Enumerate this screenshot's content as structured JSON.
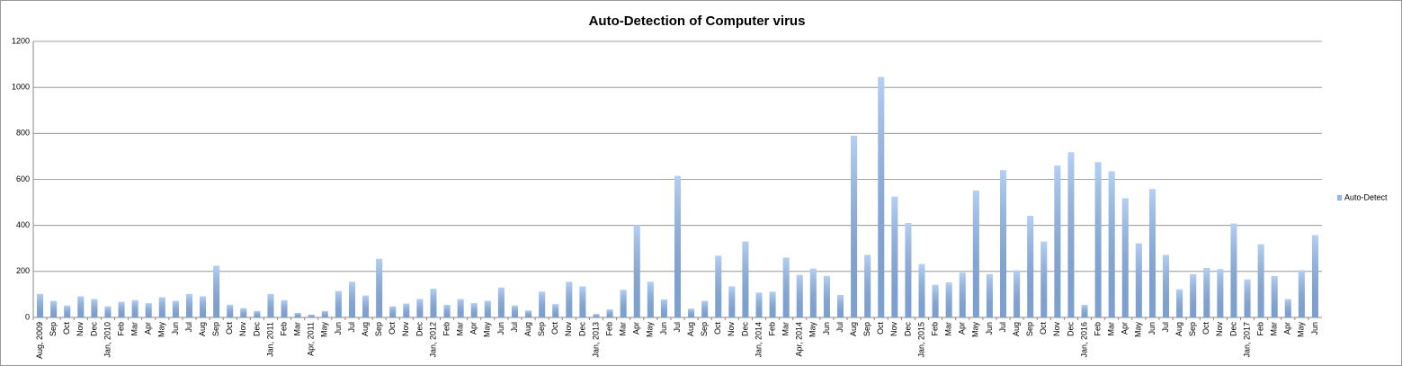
{
  "chart_data": {
    "type": "bar",
    "title": "Auto-Detection of Computer virus",
    "categories": [
      "Aug, 2009",
      "Sep",
      "Oct",
      "Nov",
      "Dec",
      "Jan, 2010",
      "Feb",
      "Mar",
      "Apr",
      "May",
      "Jun",
      "Jul",
      "Aug",
      "Sep",
      "Oct",
      "Nov",
      "Dec",
      "Jan, 2011",
      "Feb",
      "Mar",
      "Apr, 2011",
      "May",
      "Jun",
      "Jul",
      "Aug",
      "Sep",
      "Oct",
      "Nov",
      "Dec",
      "Jan, 2012",
      "Feb",
      "Mar",
      "Apr",
      "May",
      "Jun",
      "Jul",
      "Aug",
      "Sep",
      "Oct",
      "Nov",
      "Dec",
      "Jan, 2013",
      "Feb",
      "Mar",
      "Apr",
      "May",
      "Jun",
      "Jul",
      "Aug",
      "Sep",
      "Oct",
      "Nov",
      "Dec",
      "Jan, 2014",
      "Feb",
      "Mar",
      "Apr, 2014",
      "May",
      "Jun",
      "Jul",
      "Aug",
      "Sep",
      "Oct",
      "Nov",
      "Dec",
      "Jan, 2015",
      "Feb",
      "Mar",
      "Apr",
      "May",
      "Jun",
      "Jul",
      "Aug",
      "Sep",
      "Oct",
      "Nov",
      "Dec",
      "Jan, 2016",
      "Feb",
      "Mar",
      "Apr",
      "May",
      "Jun",
      "Jul",
      "Aug",
      "Sep",
      "Oct",
      "Nov",
      "Dec",
      "Jan, 2017",
      "Feb",
      "Mar",
      "Apr",
      "May",
      "Jun"
    ],
    "series": [
      {
        "name": "Auto-Detect",
        "color": "#8db6ee",
        "values": [
          102,
          72,
          52,
          92,
          80,
          48,
          68,
          75,
          62,
          88,
          72,
          102,
          92,
          225,
          55,
          40,
          28,
          102,
          75,
          20,
          12,
          28,
          115,
          155,
          95,
          255,
          48,
          60,
          80,
          125,
          55,
          80,
          62,
          72,
          130,
          52,
          30,
          112,
          58,
          155,
          135,
          15,
          35,
          120,
          400,
          155,
          78,
          615,
          38,
          72,
          268,
          135,
          330,
          108,
          112,
          260,
          185,
          212,
          180,
          98,
          790,
          272,
          1045,
          525,
          410,
          232,
          142,
          152,
          195,
          552,
          188,
          640,
          205,
          442,
          330,
          660,
          718,
          55,
          675,
          635,
          518,
          322,
          558,
          272,
          122,
          188,
          215,
          210,
          408,
          165,
          318,
          180,
          80,
          205,
          358
        ]
      }
    ],
    "ylim": [
      0,
      1200
    ],
    "yticks": [
      0,
      200,
      400,
      600,
      800,
      1000,
      1200
    ],
    "grid": true,
    "legend": "right"
  }
}
